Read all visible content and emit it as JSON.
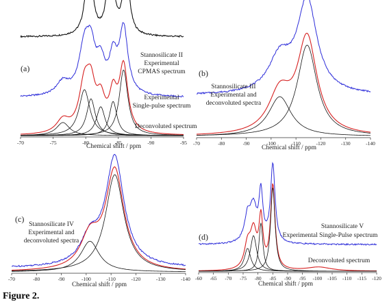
{
  "figure_caption": "Figure 2.",
  "colors": {
    "experimental_cpmas": "#111111",
    "experimental_single_pulse": "#2b2bd9",
    "fitted_sum": "#d62020",
    "components": "#111111"
  },
  "chart_data": [
    {
      "type": "line",
      "panel_label": "(a)",
      "xlabel": "Chemical shift / ppm",
      "xlim": [
        -70,
        -95
      ],
      "xticks": [
        -70,
        -75,
        -80,
        -85,
        -90,
        -95
      ],
      "annotations": [
        "Stannosilicate II",
        "Experimental",
        "CPMAS spectrum",
        "Experimental",
        "Single-pulse spectrum",
        "Deconvoluted spectrum"
      ],
      "series": [
        {
          "style": "cpmas",
          "baseline": 0.76,
          "peaks": [
            {
              "center": -80.5,
              "width": 0.6,
              "height": 0.62
            },
            {
              "center": -83.8,
              "width": 0.5,
              "height": 0.76
            },
            {
              "center": -86.2,
              "width": 0.55,
              "height": 0.54
            }
          ]
        },
        {
          "style": "experimental",
          "baseline": 0.3,
          "peaks": [
            {
              "center": -76.5,
              "width": 1.2,
              "height": 0.1
            },
            {
              "center": -79.8,
              "width": 1.0,
              "height": 0.35
            },
            {
              "center": -80.8,
              "width": 0.8,
              "height": 0.28
            },
            {
              "center": -82.3,
              "width": 0.8,
              "height": 0.22
            },
            {
              "center": -84.2,
              "width": 0.7,
              "height": 0.26
            },
            {
              "center": -85.8,
              "width": 0.8,
              "height": 0.5
            }
          ]
        },
        {
          "style": "fit",
          "baseline": 0.01,
          "peaks": [
            {
              "center": -76.5,
              "width": 1.2,
              "height": 0.1
            },
            {
              "center": -79.8,
              "width": 1.0,
              "height": 0.35
            },
            {
              "center": -80.8,
              "width": 0.8,
              "height": 0.28
            },
            {
              "center": -82.3,
              "width": 0.8,
              "height": 0.22
            },
            {
              "center": -84.2,
              "width": 0.7,
              "height": 0.26
            },
            {
              "center": -85.8,
              "width": 0.8,
              "height": 0.5
            }
          ]
        },
        {
          "style": "component",
          "baseline": 0.01,
          "peaks": [
            {
              "center": -76.5,
              "width": 1.2,
              "height": 0.1
            }
          ]
        },
        {
          "style": "component",
          "baseline": 0.01,
          "peaks": [
            {
              "center": -79.8,
              "width": 1.0,
              "height": 0.35
            }
          ]
        },
        {
          "style": "component",
          "baseline": 0.01,
          "peaks": [
            {
              "center": -80.8,
              "width": 0.8,
              "height": 0.28
            }
          ]
        },
        {
          "style": "component",
          "baseline": 0.01,
          "peaks": [
            {
              "center": -82.3,
              "width": 0.8,
              "height": 0.22
            }
          ]
        },
        {
          "style": "component",
          "baseline": 0.01,
          "peaks": [
            {
              "center": -84.2,
              "width": 0.7,
              "height": 0.26
            }
          ]
        },
        {
          "style": "component",
          "baseline": 0.01,
          "peaks": [
            {
              "center": -85.8,
              "width": 0.8,
              "height": 0.5
            }
          ]
        }
      ]
    },
    {
      "type": "line",
      "panel_label": "(b)",
      "xlabel": "Chemical shift / ppm",
      "xlim": [
        -70,
        -140
      ],
      "xticks": [
        -70,
        -80,
        -90,
        -100,
        -110,
        -120,
        -130,
        -140
      ],
      "annotations": [
        "Stannosilicate III",
        "Experimental and",
        "deconvoluted spectra"
      ],
      "series": [
        {
          "style": "experimental",
          "baseline": 0.32,
          "peaks": [
            {
              "center": -103.5,
              "width": 5.5,
              "height": 0.26
            },
            {
              "center": -114.5,
              "width": 4.8,
              "height": 0.7
            }
          ]
        },
        {
          "style": "fit",
          "baseline": 0.01,
          "peaks": [
            {
              "center": -103.5,
              "width": 5.5,
              "height": 0.3
            },
            {
              "center": -114.5,
              "width": 4.8,
              "height": 0.72
            }
          ]
        },
        {
          "style": "component",
          "baseline": 0.01,
          "peaks": [
            {
              "center": -103.5,
              "width": 5.5,
              "height": 0.3
            }
          ]
        },
        {
          "style": "component",
          "baseline": 0.01,
          "peaks": [
            {
              "center": -114.5,
              "width": 4.8,
              "height": 0.69
            }
          ]
        }
      ]
    },
    {
      "type": "line",
      "panel_label": "(c)",
      "xlabel": "Chemical shift / ppm",
      "xlim": [
        -70,
        -140
      ],
      "xticks": [
        -70,
        -80,
        -90,
        -100,
        -110,
        -120,
        -130,
        -140
      ],
      "annotations": [
        "Stannosilicate IV",
        "Experimental and",
        "deconvoluted spectra"
      ],
      "series": [
        {
          "style": "experimental",
          "baseline": 0.04,
          "peaks": [
            {
              "center": -101.5,
              "width": 4.5,
              "height": 0.2
            },
            {
              "center": -111.5,
              "width": 4.5,
              "height": 0.85
            }
          ]
        },
        {
          "style": "fit",
          "baseline": 0.01,
          "peaks": [
            {
              "center": -101.5,
              "width": 4.5,
              "height": 0.24
            },
            {
              "center": -111.5,
              "width": 4.5,
              "height": 0.78
            }
          ]
        },
        {
          "style": "component",
          "baseline": 0.01,
          "peaks": [
            {
              "center": -101.5,
              "width": 4.5,
              "height": 0.24
            }
          ]
        },
        {
          "style": "component",
          "baseline": 0.01,
          "peaks": [
            {
              "center": -111.5,
              "width": 4.5,
              "height": 0.76
            }
          ]
        }
      ]
    },
    {
      "type": "line",
      "panel_label": "(d)",
      "xlabel": "Chemical shift / ppm",
      "xlim": [
        -60,
        -120
      ],
      "xticks": [
        -60,
        -65,
        -70,
        -75,
        -80,
        -85,
        -90,
        -95,
        -100,
        -105,
        -110,
        -115,
        -120
      ],
      "annotations": [
        "Stannosilicate V",
        "Experimental Single-Pulse spectrum",
        "Deconvoluted spectrum"
      ],
      "series": [
        {
          "style": "experimental",
          "baseline": 0.22,
          "peaks": [
            {
              "center": -76.5,
              "width": 1.3,
              "height": 0.2
            },
            {
              "center": -78.5,
              "width": 1.3,
              "height": 0.26
            },
            {
              "center": -81.0,
              "width": 0.8,
              "height": 0.38
            },
            {
              "center": -85.0,
              "width": 0.9,
              "height": 0.62
            }
          ]
        },
        {
          "style": "fit",
          "baseline": 0.01,
          "peaks": [
            {
              "center": -76.5,
              "width": 1.3,
              "height": 0.18
            },
            {
              "center": -78.5,
              "width": 1.3,
              "height": 0.28
            },
            {
              "center": -81.0,
              "width": 0.8,
              "height": 0.38
            },
            {
              "center": -85.0,
              "width": 0.9,
              "height": 0.66
            },
            {
              "center": -100.5,
              "width": 5.0,
              "height": 0.03
            }
          ]
        },
        {
          "style": "component",
          "baseline": 0.01,
          "peaks": [
            {
              "center": -76.5,
              "width": 1.3,
              "height": 0.18
            }
          ]
        },
        {
          "style": "component",
          "baseline": 0.01,
          "peaks": [
            {
              "center": -78.5,
              "width": 1.3,
              "height": 0.28
            }
          ]
        },
        {
          "style": "component",
          "baseline": 0.01,
          "peaks": [
            {
              "center": -81.0,
              "width": 0.8,
              "height": 0.38
            }
          ]
        },
        {
          "style": "component",
          "baseline": 0.01,
          "peaks": [
            {
              "center": -85.0,
              "width": 0.9,
              "height": 0.66
            }
          ]
        }
      ]
    }
  ]
}
